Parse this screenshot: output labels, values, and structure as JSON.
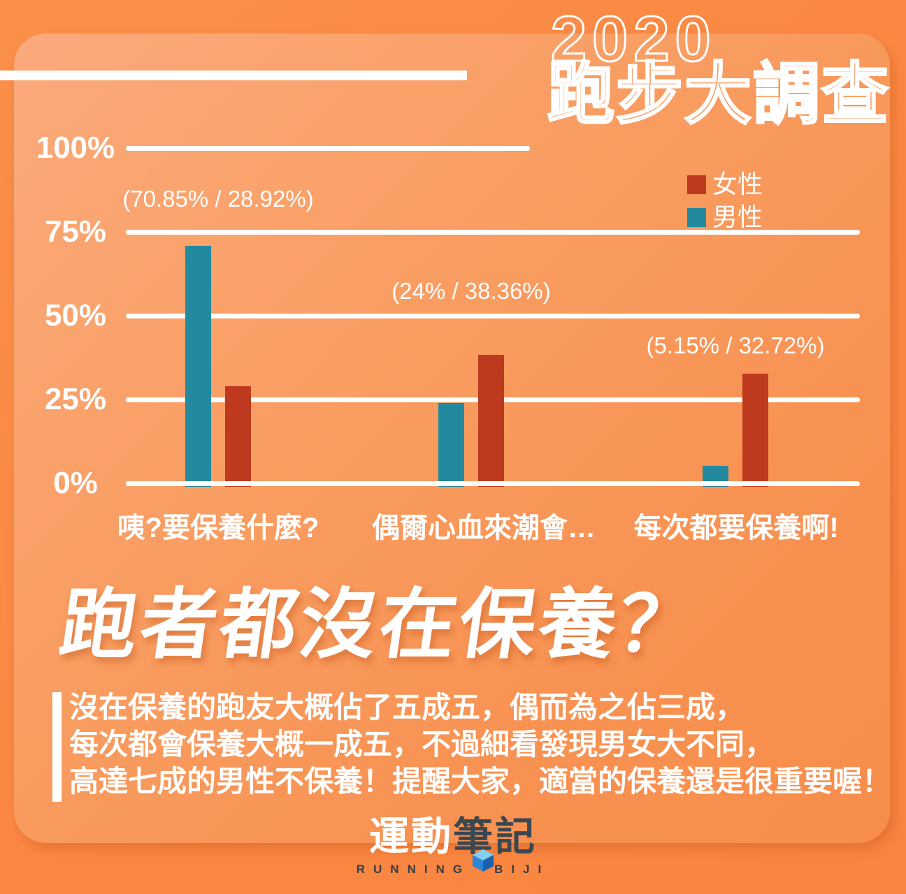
{
  "header": {
    "year": "2020",
    "title": "跑步大調查"
  },
  "chart_data": {
    "type": "bar",
    "categories": [
      "咦?要保養什麼?",
      "偶爾心血來潮會…",
      "每次都要保養啊!"
    ],
    "series": [
      {
        "name": "男性",
        "color": "#23899F",
        "values": [
          70.85,
          24,
          5.15
        ]
      },
      {
        "name": "女性",
        "color": "#BE3A1E",
        "values": [
          28.92,
          38.36,
          32.72
        ]
      }
    ],
    "annotations": [
      "(70.85% / 28.92%)",
      "(24% / 38.36%)",
      "(5.15% / 32.72%)"
    ],
    "yticks": [
      "0%",
      "25%",
      "50%",
      "75%",
      "100%"
    ],
    "ylim": [
      0,
      100
    ],
    "grid": true,
    "legend_position": "top-right",
    "legend_order": [
      "女性",
      "男性"
    ],
    "bar_order": [
      "男性",
      "女性"
    ]
  },
  "summary": {
    "heading": "跑者都沒在保養？",
    "line1": "沒在保養的跑友大概佔了五成五，偶而為之佔三成，",
    "line2": "每次都會保養大概一成五，不過細看發現男女大不同，",
    "line3": "高達七成的男性不保養！提醒大家，適當的保養還是很重要喔！"
  },
  "footer": {
    "logo_cn_white": "運動",
    "logo_cn_dark": "筆記",
    "logo_en_word1": "RUNNING",
    "logo_en_word2": "BIJI"
  },
  "colors": {
    "background_orange": "#FA8843",
    "card_orange": "#F99B5E",
    "female_red": "#BE3A1E",
    "male_teal": "#23899F",
    "text_white": "#FFFFFF",
    "logo_dark": "#3B4750"
  }
}
